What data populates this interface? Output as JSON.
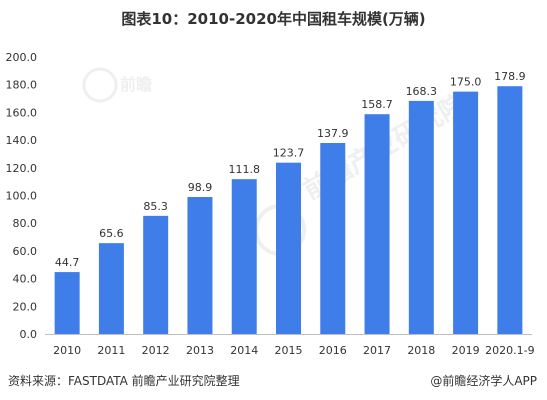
{
  "header": {
    "title": "图表10：2010-2020年中国租车规模(万辆)"
  },
  "footer": {
    "source": "资料来源：FASTDATA 前瞻产业研究院整理",
    "brand": "@前瞻经济学人APP"
  },
  "watermark": {
    "logo_text": "前瞻",
    "sub_text": "前瞻产业研究院"
  },
  "chart_data": {
    "type": "bar",
    "title": "图表10：2010-2020年中国租车规模(万辆)",
    "xlabel": "",
    "ylabel": "",
    "categories": [
      "2010",
      "2011",
      "2012",
      "2013",
      "2014",
      "2015",
      "2016",
      "2017",
      "2018",
      "2019",
      "2020.1-9"
    ],
    "values": [
      44.7,
      65.6,
      85.3,
      98.9,
      111.8,
      123.7,
      137.9,
      158.7,
      168.3,
      175.0,
      178.9
    ],
    "value_labels": [
      "44.7",
      "65.6",
      "85.3",
      "98.9",
      "111.8",
      "123.7",
      "137.9",
      "158.7",
      "168.3",
      "175.0",
      "178.9"
    ],
    "ylim": [
      0,
      200
    ],
    "yticks": [
      "0.0",
      "20.0",
      "40.0",
      "60.0",
      "80.0",
      "100.0",
      "120.0",
      "140.0",
      "160.0",
      "180.0",
      "200.0"
    ],
    "grid": false,
    "legend": "none",
    "bar_color": "#3f7ee8"
  }
}
